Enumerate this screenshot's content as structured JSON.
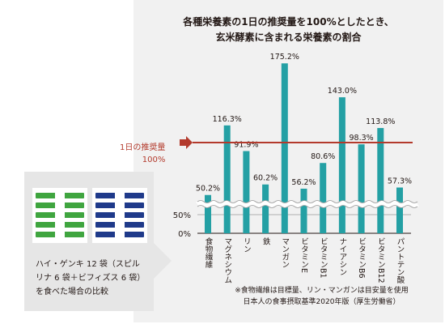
{
  "chart_data": {
    "type": "bar",
    "title": "各種栄養素の1日の推奨量を100%としたとき、",
    "subtitle": "玄米酵素に含まれる栄養素の割合",
    "categories": [
      "食物繊維",
      "マグネシウム",
      "リン",
      "鉄",
      "マンガン",
      "ビタミンE",
      "ビタミンB1",
      "ナイアシン",
      "ビタミンB6",
      "ビタミンB12",
      "パントテン酸"
    ],
    "values": [
      50.2,
      116.3,
      91.9,
      60.2,
      175.2,
      56.2,
      80.6,
      143.0,
      98.3,
      113.8,
      57.3
    ],
    "value_labels": [
      "50.2%",
      "116.3%",
      "91.9%",
      "60.2%",
      "175.2%",
      "56.2%",
      "80.6%",
      "143.0%",
      "98.3%",
      "113.8%",
      "57.3%"
    ],
    "y_ticks": [
      "50%",
      "0%"
    ],
    "reference_line": {
      "value": 100,
      "label1": "1日の推奨量",
      "label2": "100%",
      "color": "#b33a2c"
    },
    "axis_break": true,
    "bar_color": "#24a0a4"
  },
  "caption": [
    "ハイ・ゲンキ 12 袋（スピル",
    "リナ 6 袋＋ビフィズス 6 袋）",
    "を食べた場合の比較"
  ],
  "note": [
    "※食物繊維は目標量、リン・マンガンは目安量を使用",
    "日本人の食事摂取基準2020年版（厚生労働省）"
  ],
  "product": {
    "brand": "HI-GENKI"
  }
}
